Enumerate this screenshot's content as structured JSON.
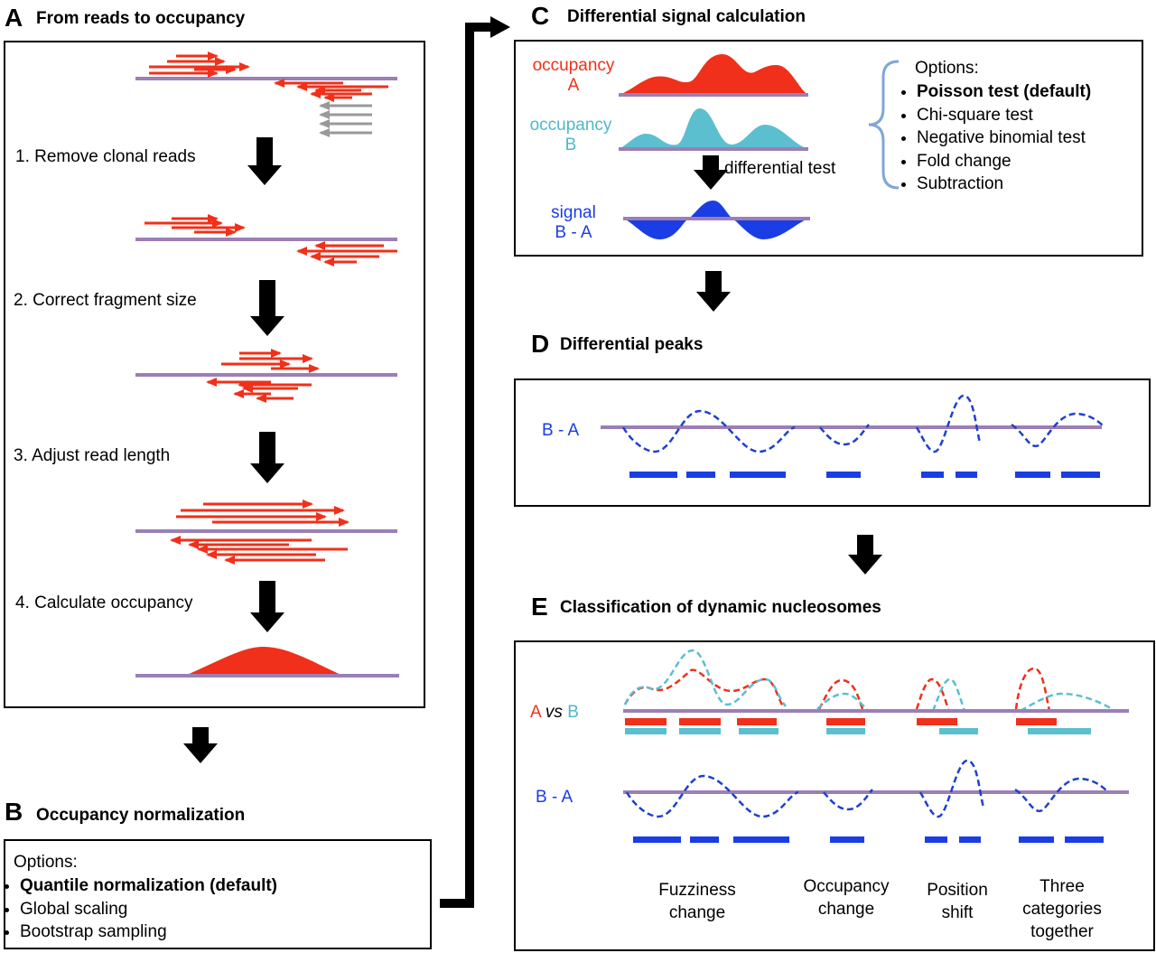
{
  "panel_a": {
    "letter": "A",
    "title": "From reads to occupancy",
    "steps": [
      "1. Remove clonal reads",
      "2. Correct fragment size",
      "3. Adjust read length",
      "4. Calculate occupancy"
    ]
  },
  "panel_b": {
    "letter": "B",
    "title": "Occupancy normalization",
    "options_heading": "Options:",
    "options": [
      "Quantile normalization (default)",
      "Global scaling",
      "Bootstrap sampling"
    ]
  },
  "panel_c": {
    "letter": "C",
    "title": "Differential signal calculation",
    "occupancy_a": [
      "occupancy",
      "A"
    ],
    "occupancy_b": [
      "occupancy",
      "B"
    ],
    "signal": [
      "signal",
      "B - A"
    ],
    "test_label": "differential test",
    "options_heading": "Options:",
    "options": [
      "Poisson test (default)",
      "Chi-square test",
      "Negative binomial test",
      "Fold change",
      "Subtraction"
    ]
  },
  "panel_d": {
    "letter": "D",
    "title": "Differential peaks",
    "row_label": "B - A"
  },
  "panel_e": {
    "letter": "E",
    "title": "Classification of dynamic nucleosomes",
    "comparison": [
      "A",
      "vs",
      "B"
    ],
    "difference_label": "B - A",
    "categories": [
      [
        "Fuzziness",
        "change"
      ],
      [
        "Occupancy",
        "change"
      ],
      [
        "Position",
        "shift"
      ],
      [
        "Three",
        "categories",
        "together"
      ]
    ]
  }
}
